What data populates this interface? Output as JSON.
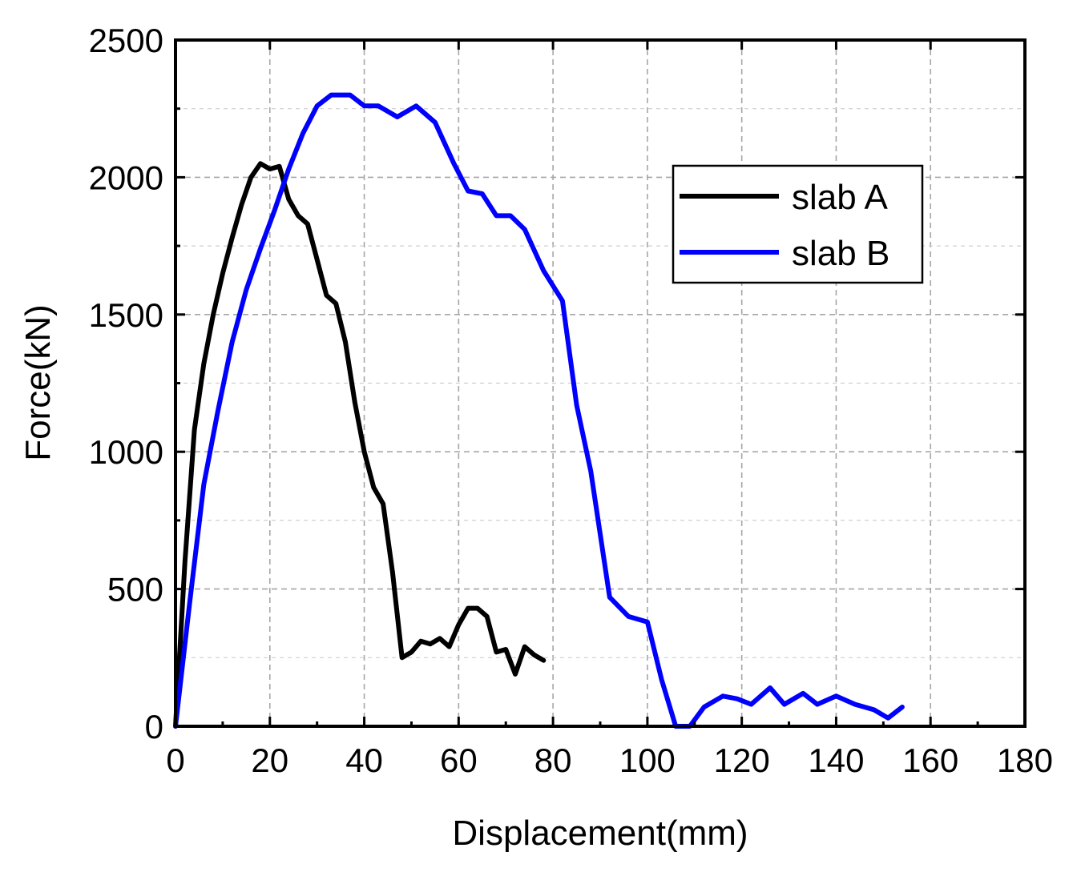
{
  "chart_data": {
    "type": "line",
    "xlabel": "Displacement(mm)",
    "ylabel": "Force(kN)",
    "xlim": [
      0,
      180
    ],
    "ylim": [
      0,
      2500
    ],
    "xticks": [
      "0",
      "20",
      "40",
      "60",
      "80",
      "100",
      "120",
      "140",
      "160",
      "180"
    ],
    "yticks": [
      "0",
      "500",
      "1000",
      "1500",
      "2000",
      "2500"
    ],
    "grid": true,
    "legend_position": "upper-right",
    "series": [
      {
        "name": "slab A",
        "color": "#000000",
        "x": [
          0,
          2,
          4,
          6,
          8,
          10,
          12,
          14,
          16,
          18,
          20,
          22,
          24,
          26,
          28,
          30,
          32,
          34,
          36,
          38,
          40,
          42,
          44,
          46,
          48,
          50,
          52,
          54,
          56,
          58,
          60,
          62,
          64,
          66,
          68,
          70,
          72,
          74,
          76,
          78
        ],
        "y": [
          0,
          600,
          1080,
          1320,
          1500,
          1650,
          1780,
          1900,
          2000,
          2050,
          2030,
          2040,
          1920,
          1860,
          1830,
          1700,
          1570,
          1540,
          1400,
          1180,
          1000,
          870,
          810,
          560,
          250,
          270,
          310,
          300,
          320,
          290,
          370,
          430,
          430,
          400,
          270,
          280,
          190,
          290,
          260,
          240
        ]
      },
      {
        "name": "slab B",
        "color": "#0000ff",
        "x": [
          0,
          3,
          6,
          9,
          12,
          15,
          18,
          21,
          24,
          27,
          30,
          33,
          37,
          40,
          43,
          47,
          51,
          55,
          59,
          62,
          65,
          68,
          71,
          74,
          78,
          82,
          85,
          88,
          92,
          96,
          100,
          103,
          106,
          109,
          112,
          116,
          119,
          122,
          126,
          129,
          133,
          136,
          140,
          144,
          148,
          151,
          154
        ],
        "y": [
          0,
          450,
          880,
          1150,
          1400,
          1590,
          1740,
          1880,
          2030,
          2160,
          2260,
          2300,
          2300,
          2260,
          2260,
          2220,
          2260,
          2200,
          2050,
          1950,
          1940,
          1860,
          1860,
          1810,
          1660,
          1550,
          1170,
          930,
          470,
          400,
          380,
          170,
          0,
          0,
          70,
          110,
          100,
          80,
          140,
          80,
          120,
          80,
          110,
          80,
          60,
          30,
          70
        ]
      }
    ]
  }
}
